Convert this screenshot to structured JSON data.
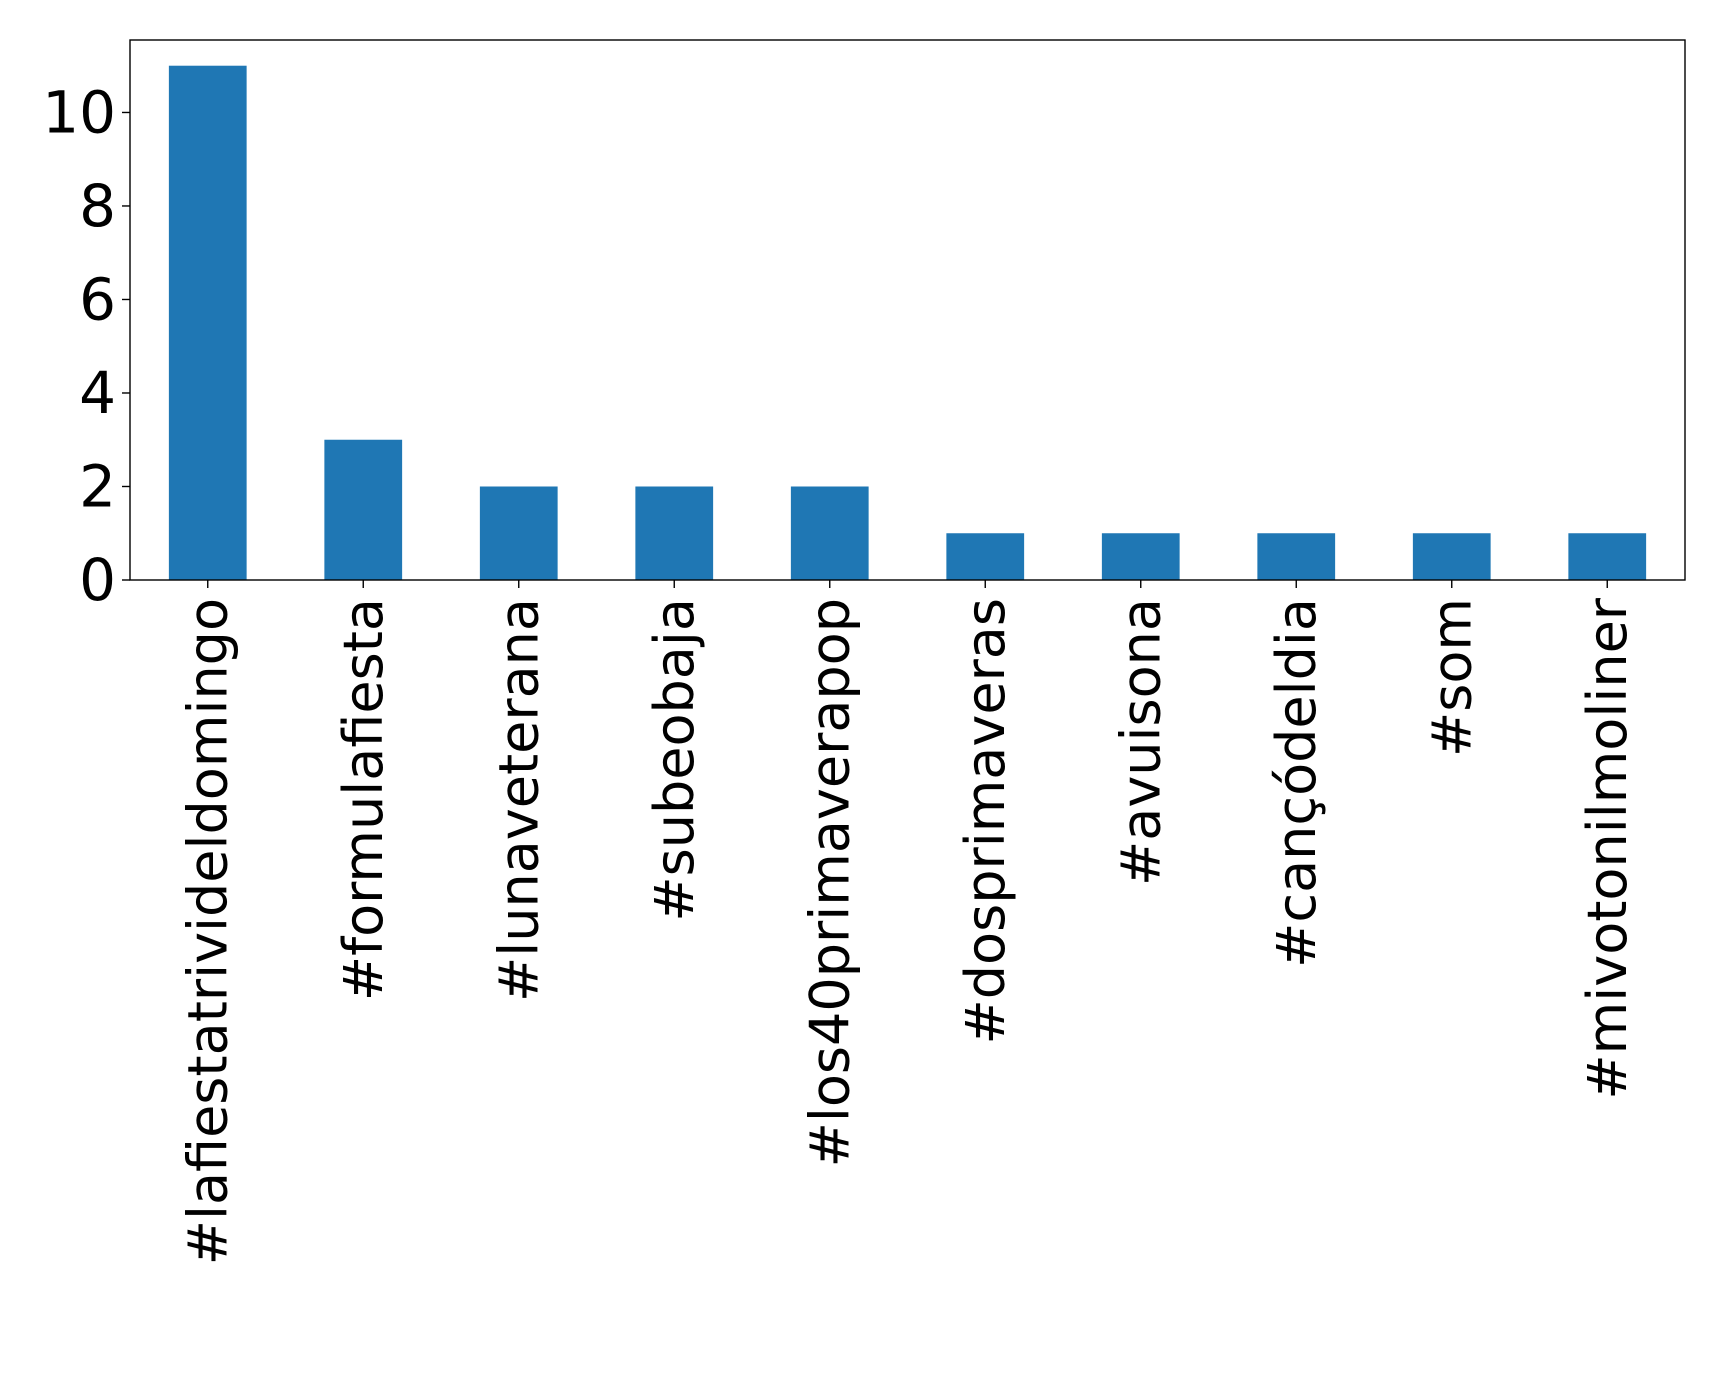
{
  "chart_data": {
    "type": "bar",
    "categories": [
      "#lafiestatrivideldomingo",
      "#formulafiesta",
      "#lunaveterana",
      "#subeobaja",
      "#los40primaverapop",
      "#dosprimaveras",
      "#avuisona",
      "#cançódeldia",
      "#som",
      "#mivotonilmoliner"
    ],
    "values": [
      11,
      3,
      2,
      2,
      2,
      1,
      1,
      1,
      1,
      1
    ],
    "title": "",
    "xlabel": "",
    "ylabel": "",
    "ylim": [
      0,
      11.55
    ],
    "yticks": [
      0,
      2,
      4,
      6,
      8,
      10
    ],
    "grid": false,
    "legend": "none",
    "bar_color": "#1f77b4"
  }
}
